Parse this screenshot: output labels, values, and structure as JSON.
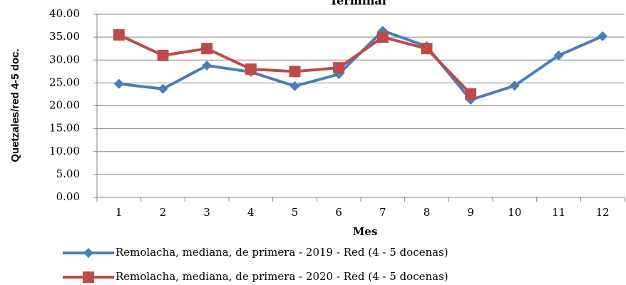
{
  "chart_data": {
    "type": "line",
    "title": "Terminal",
    "x_label": "Mes",
    "y_label": "Quetzales/red 4-5 doc.",
    "categories": [
      "1",
      "2",
      "3",
      "4",
      "5",
      "6",
      "7",
      "8",
      "9",
      "10",
      "11",
      "12"
    ],
    "series": [
      {
        "name": "Remolacha, mediana, de primera - 2019 - Red (4 - 5 docenas)",
        "color": "#4a7ebb",
        "marker": "diamond",
        "values": [
          24.8,
          23.7,
          28.8,
          27.4,
          24.3,
          26.9,
          36.4,
          33.0,
          21.3,
          24.4,
          31.0,
          35.2
        ]
      },
      {
        "name": "Remolacha, mediana, de primera - 2020 - Red (4 - 5 docenas)",
        "color": "#be4b48",
        "marker": "square",
        "values": [
          35.5,
          31.0,
          32.5,
          28.0,
          27.5,
          28.3,
          35.0,
          32.5,
          22.6,
          null,
          null,
          null
        ]
      }
    ],
    "ylim": [
      0,
      40
    ],
    "yticks": [
      {
        "value": 0,
        "label": "0.00"
      },
      {
        "value": 5,
        "label": "5.00"
      },
      {
        "value": 10,
        "label": "10.00"
      },
      {
        "value": 15,
        "label": "15.00"
      },
      {
        "value": 20,
        "label": "20.00"
      },
      {
        "value": 25,
        "label": "25.00"
      },
      {
        "value": 30,
        "label": "30.00"
      },
      {
        "value": 35,
        "label": "35.00"
      },
      {
        "value": 40,
        "label": "40.00"
      }
    ],
    "grid": true,
    "legend": "bottom"
  }
}
